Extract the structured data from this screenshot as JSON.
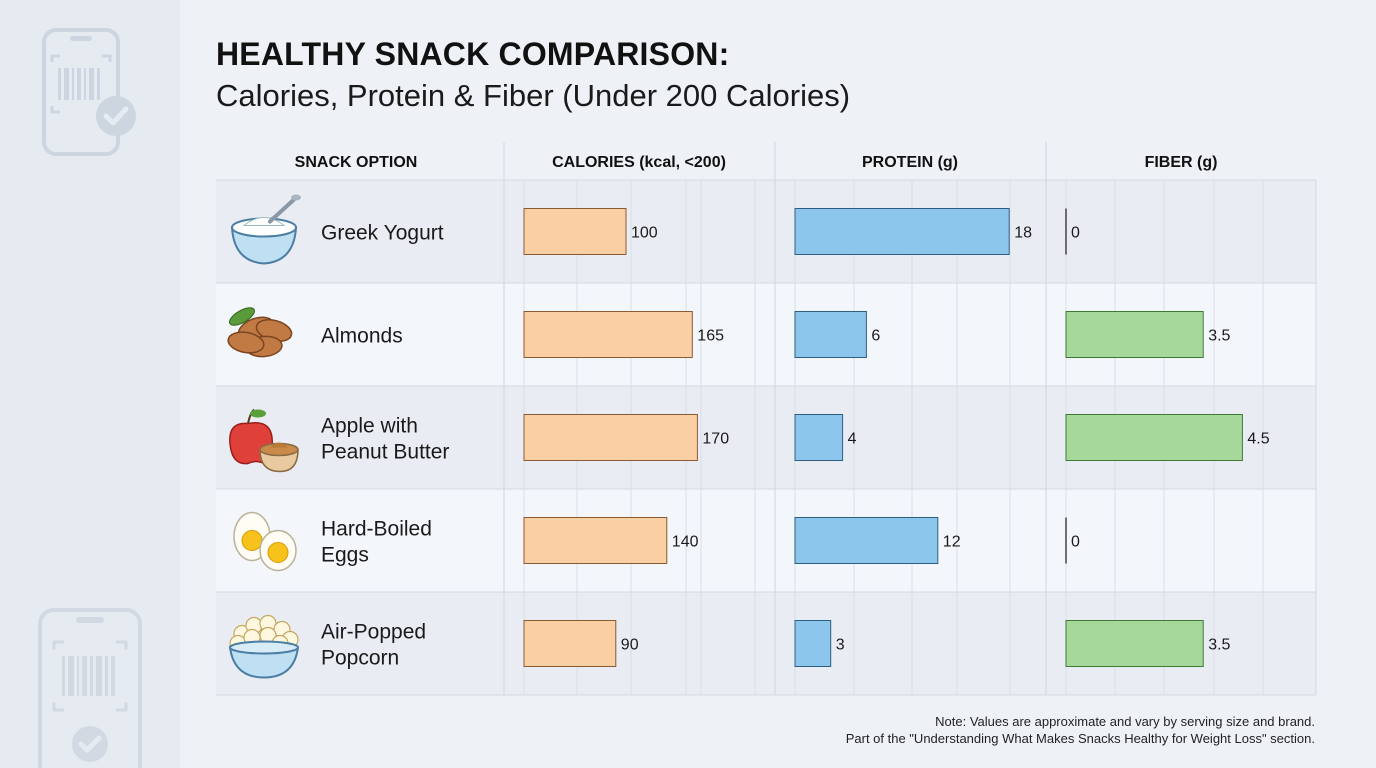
{
  "title": "HEALTHY SNACK COMPARISON:",
  "subtitle": "Calories, Protein & Fiber (Under 200 Calories)",
  "note": {
    "line1": "Note: Values are approximate and vary by serving size and brand.",
    "line2": "Part of the \"Understanding What Makes Snacks Healthy for Weight Loss\" section."
  },
  "icons": {
    "decor_top": "phone-barcode-check-icon",
    "decor_bottom": "phone-barcode-check-icon",
    "rows": [
      "greek-yogurt-bowl-icon",
      "almonds-icon",
      "apple-peanut-butter-icon",
      "boiled-eggs-icon",
      "popcorn-bowl-icon"
    ]
  },
  "colors": {
    "calories": "#fbcfa4",
    "protein": "#8cc6ec",
    "fiber": "#a6d89b",
    "row_alt": "#e9edf3",
    "row": "#f3f6fa"
  },
  "chart_data": {
    "type": "bar",
    "layout": "table-of-horizontal-bars",
    "categories": [
      "Greek Yogurt",
      "Almonds",
      "Apple with\nPeanut Butter",
      "Hard-Boiled\nEggs",
      "Air-Popped\nPopcorn"
    ],
    "column_headers": {
      "snack": "SNACK OPTION",
      "calories": "CALORIES (kcal, <200)",
      "protein": "PROTEIN (g)",
      "fiber": "FIBER (g)"
    },
    "series": [
      {
        "key": "calories",
        "values": [
          100,
          165,
          170,
          140,
          90
        ],
        "labels": [
          "100",
          "165",
          "170",
          "140",
          "90"
        ],
        "xlim": [
          0,
          200
        ]
      },
      {
        "key": "protein",
        "values": [
          18,
          6,
          4,
          12,
          3
        ],
        "labels": [
          "18",
          "6",
          "4",
          "12",
          "3"
        ],
        "xlim": [
          0,
          24
        ]
      },
      {
        "key": "fiber",
        "values": [
          0,
          3.5,
          4.5,
          0,
          3.5
        ],
        "labels": [
          "0",
          "3.5",
          "4.5",
          "0",
          "3.5"
        ],
        "xlim": [
          0,
          5
        ]
      }
    ],
    "grid": true,
    "legend": "none"
  }
}
